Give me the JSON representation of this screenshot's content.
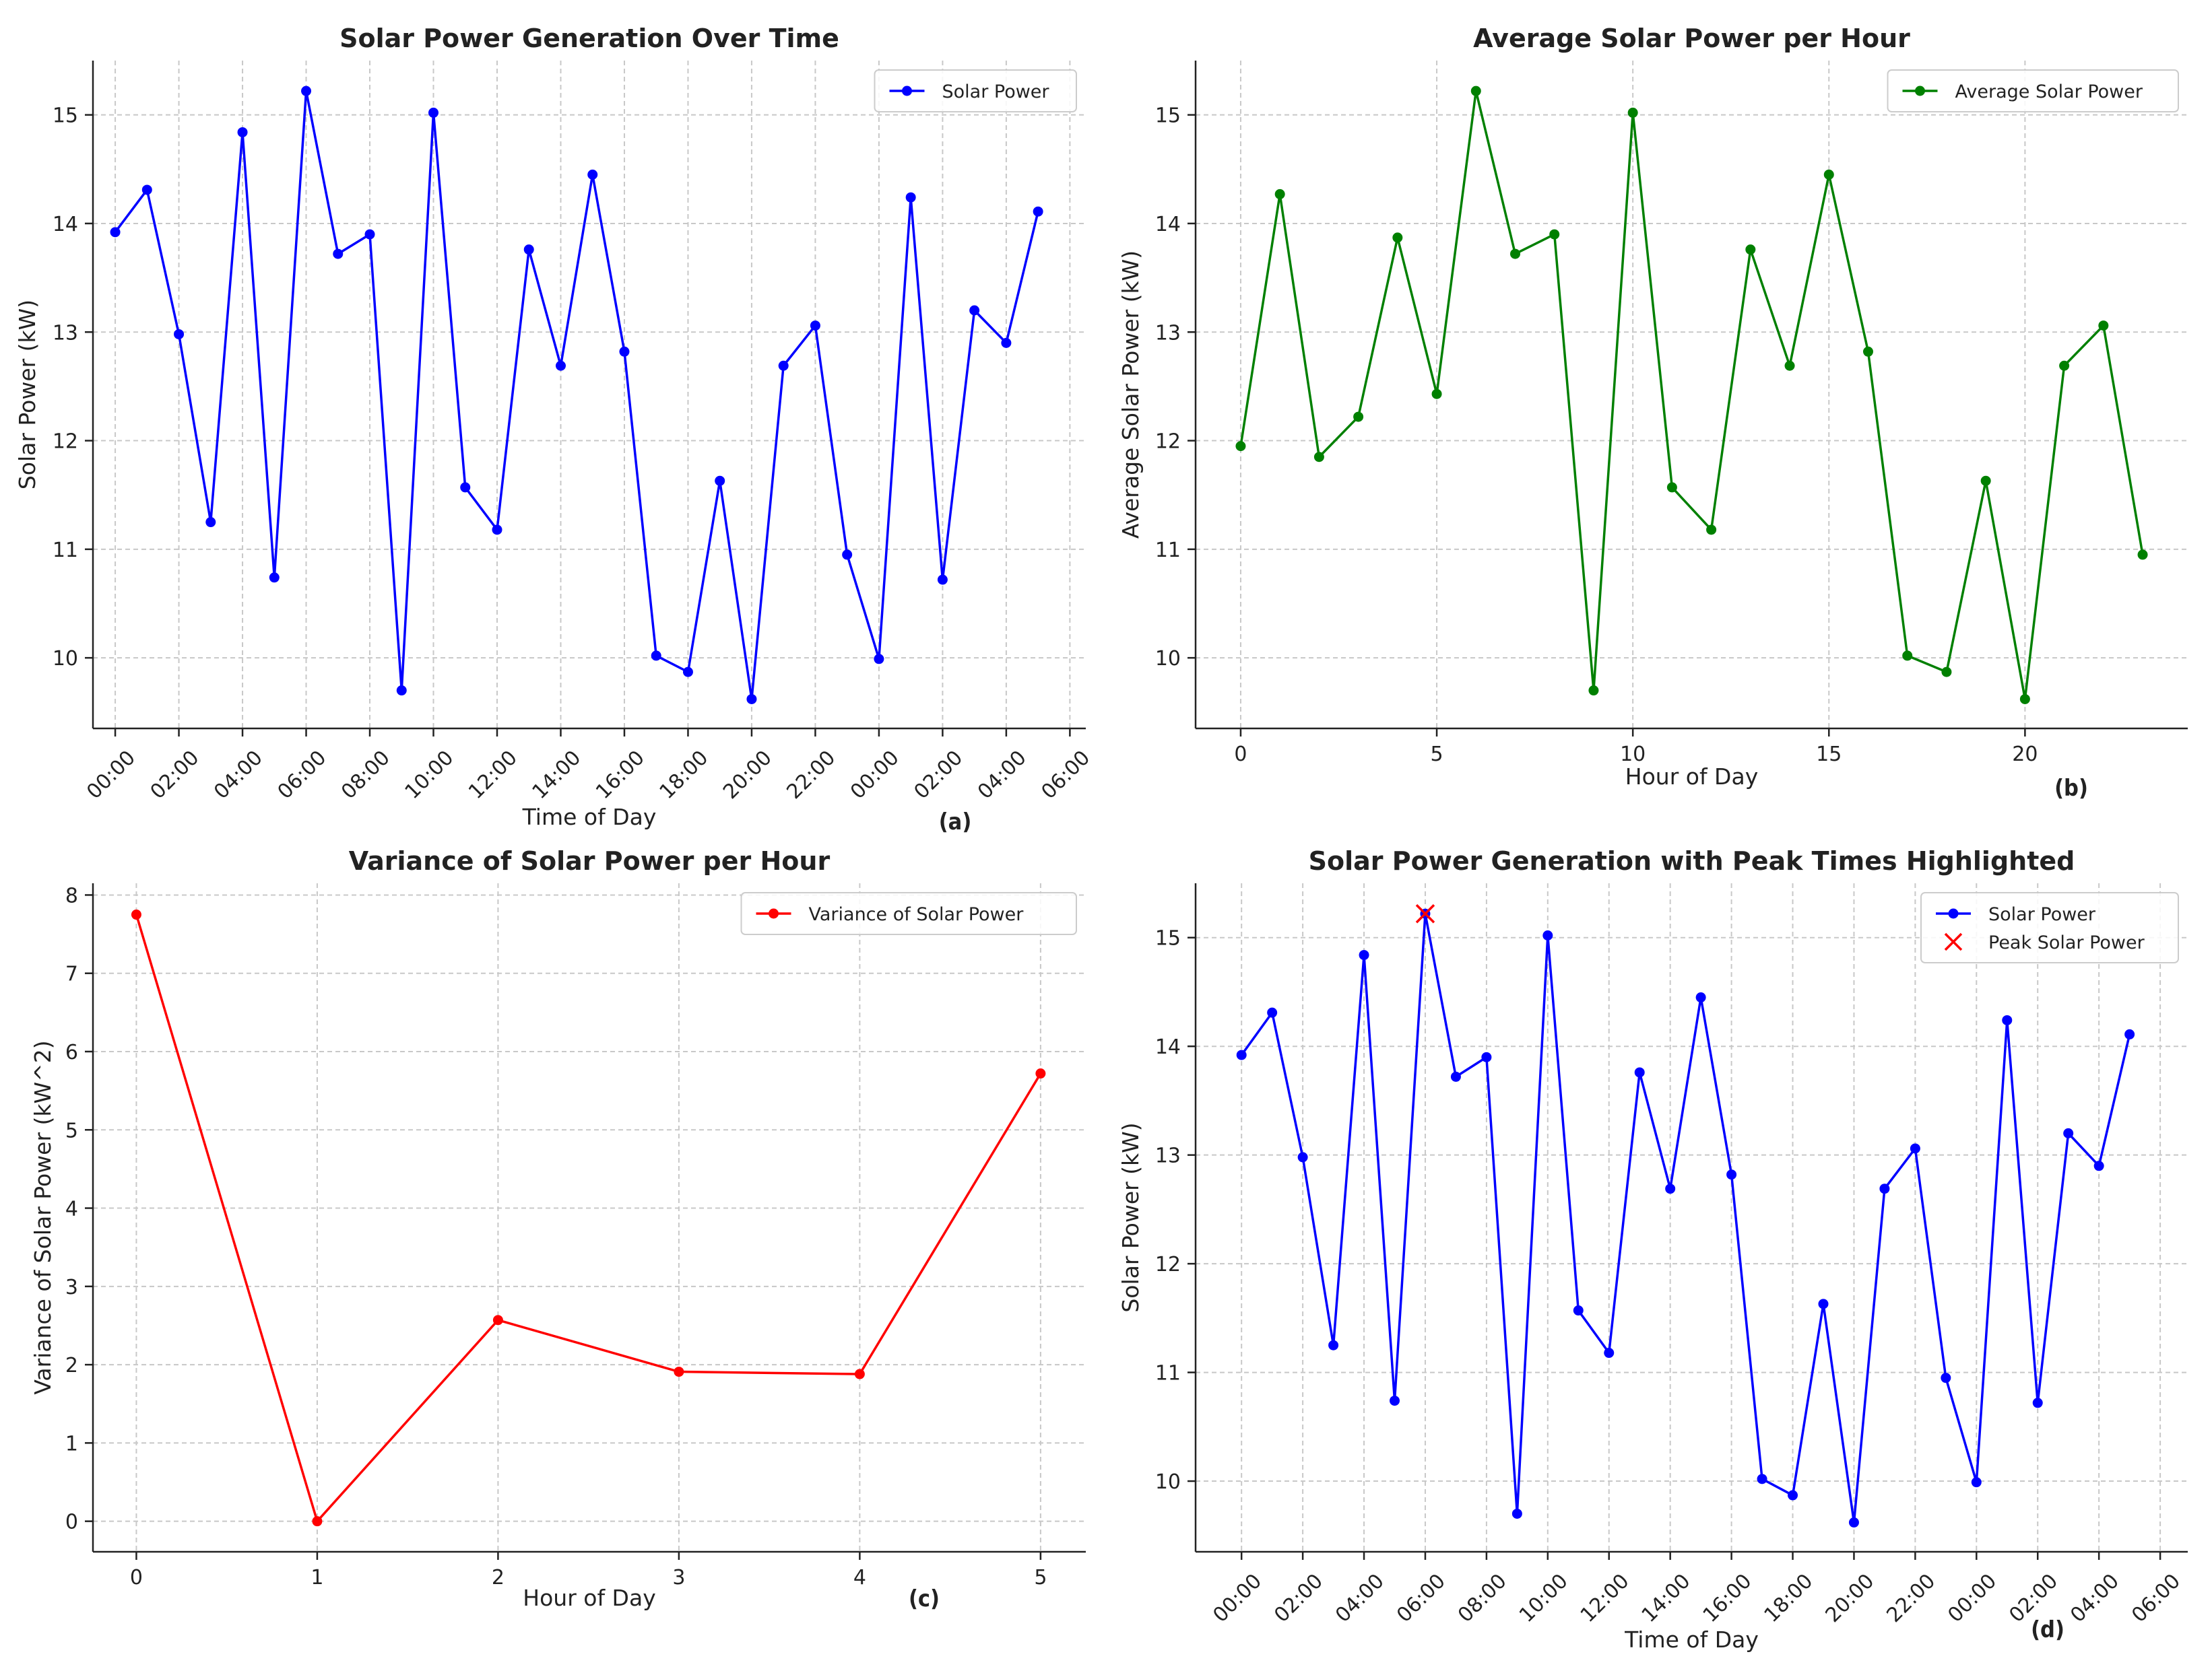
{
  "chart_data": [
    {
      "id": "a",
      "type": "line",
      "title": "Solar Power Generation Over Time",
      "xlabel": "Time of Day",
      "ylabel": "Solar Power (kW)",
      "panel_label": "(a)",
      "x_tick_labels": [
        "00:00",
        "02:00",
        "04:00",
        "06:00",
        "08:00",
        "10:00",
        "12:00",
        "14:00",
        "16:00",
        "18:00",
        "20:00",
        "22:00",
        "00:00",
        "02:00",
        "04:00",
        "06:00"
      ],
      "y_ticks": [
        10,
        11,
        12,
        13,
        14,
        15
      ],
      "xlim": [
        -0.7,
        30.5
      ],
      "ylim": [
        9.35,
        15.5
      ],
      "legend": "top-right",
      "series": [
        {
          "name": "Solar Power",
          "color": "#0000ff",
          "marker": "circle",
          "x": [
            0,
            1,
            2,
            3,
            4,
            5,
            6,
            7,
            8,
            9,
            10,
            11,
            12,
            13,
            14,
            15,
            16,
            17,
            18,
            19,
            20,
            21,
            22,
            23,
            24,
            25,
            26,
            27,
            28,
            29
          ],
          "values": [
            13.92,
            14.31,
            12.98,
            11.25,
            14.84,
            10.74,
            15.22,
            13.72,
            13.9,
            9.7,
            15.02,
            11.57,
            11.18,
            13.76,
            12.69,
            14.45,
            12.82,
            10.02,
            9.87,
            11.63,
            9.62,
            12.69,
            13.06,
            10.95,
            9.99,
            14.24,
            10.72,
            13.2,
            12.9,
            14.11
          ]
        }
      ]
    },
    {
      "id": "b",
      "type": "line",
      "title": "Average Solar Power per Hour",
      "xlabel": "Hour of Day",
      "ylabel": "Average Solar Power (kW)",
      "panel_label": "(b)",
      "x_ticks": [
        0,
        5,
        10,
        15,
        20
      ],
      "y_ticks": [
        10,
        11,
        12,
        13,
        14,
        15
      ],
      "xlim": [
        -1.15,
        24.15
      ],
      "ylim": [
        9.35,
        15.5
      ],
      "legend": "top-right",
      "series": [
        {
          "name": "Average Solar Power",
          "color": "#008000",
          "marker": "circle",
          "x": [
            0,
            1,
            2,
            3,
            4,
            5,
            6,
            7,
            8,
            9,
            10,
            11,
            12,
            13,
            14,
            15,
            16,
            17,
            18,
            19,
            20,
            21,
            22,
            23
          ],
          "values": [
            11.95,
            14.27,
            11.85,
            12.22,
            13.87,
            12.43,
            15.22,
            13.72,
            13.9,
            9.7,
            15.02,
            11.57,
            11.18,
            13.76,
            12.69,
            14.45,
            12.82,
            10.02,
            9.87,
            11.63,
            9.62,
            12.69,
            13.06,
            10.95
          ]
        }
      ]
    },
    {
      "id": "c",
      "type": "line",
      "title": "Variance of Solar Power per Hour",
      "xlabel": "Hour of Day",
      "ylabel": "Variance of Solar Power (kW^2)",
      "panel_label": "(c)",
      "x_ticks": [
        0,
        1,
        2,
        3,
        4,
        5
      ],
      "y_ticks": [
        0,
        1,
        2,
        3,
        4,
        5,
        6,
        7,
        8
      ],
      "xlim": [
        -0.24,
        5.25
      ],
      "ylim": [
        -0.39,
        8.15
      ],
      "legend": "top-right",
      "series": [
        {
          "name": "Variance of Solar Power",
          "color": "#ff0000",
          "marker": "circle",
          "x": [
            0,
            1,
            2,
            3,
            4,
            5
          ],
          "values": [
            7.75,
            0.0,
            2.57,
            1.91,
            1.88,
            5.72
          ]
        }
      ]
    },
    {
      "id": "d",
      "type": "line",
      "title": "Solar Power Generation with Peak Times Highlighted",
      "xlabel": "Time of Day",
      "ylabel": "Solar Power (kW)",
      "panel_label": "(d)",
      "x_tick_labels": [
        "00:00",
        "02:00",
        "04:00",
        "06:00",
        "08:00",
        "10:00",
        "12:00",
        "14:00",
        "16:00",
        "18:00",
        "20:00",
        "22:00",
        "00:00",
        "02:00",
        "04:00",
        "06:00"
      ],
      "y_ticks": [
        10,
        11,
        12,
        13,
        14,
        15
      ],
      "xlim": [
        -1.5,
        30.9
      ],
      "ylim": [
        9.35,
        15.5
      ],
      "legend": "top-right",
      "series": [
        {
          "name": "Solar Power",
          "color": "#0000ff",
          "marker": "circle",
          "x": [
            0,
            1,
            2,
            3,
            4,
            5,
            6,
            7,
            8,
            9,
            10,
            11,
            12,
            13,
            14,
            15,
            16,
            17,
            18,
            19,
            20,
            21,
            22,
            23,
            24,
            25,
            26,
            27,
            28,
            29
          ],
          "values": [
            13.92,
            14.31,
            12.98,
            11.25,
            14.84,
            10.74,
            15.22,
            13.72,
            13.9,
            9.7,
            15.02,
            11.57,
            11.18,
            13.76,
            12.69,
            14.45,
            12.82,
            10.02,
            9.87,
            11.63,
            9.62,
            12.69,
            13.06,
            10.95,
            9.99,
            14.24,
            10.72,
            13.2,
            12.9,
            14.11
          ]
        },
        {
          "name": "Peak Solar Power",
          "color": "#ff0000",
          "marker": "x",
          "x": [
            6
          ],
          "values": [
            15.22
          ]
        }
      ]
    }
  ]
}
